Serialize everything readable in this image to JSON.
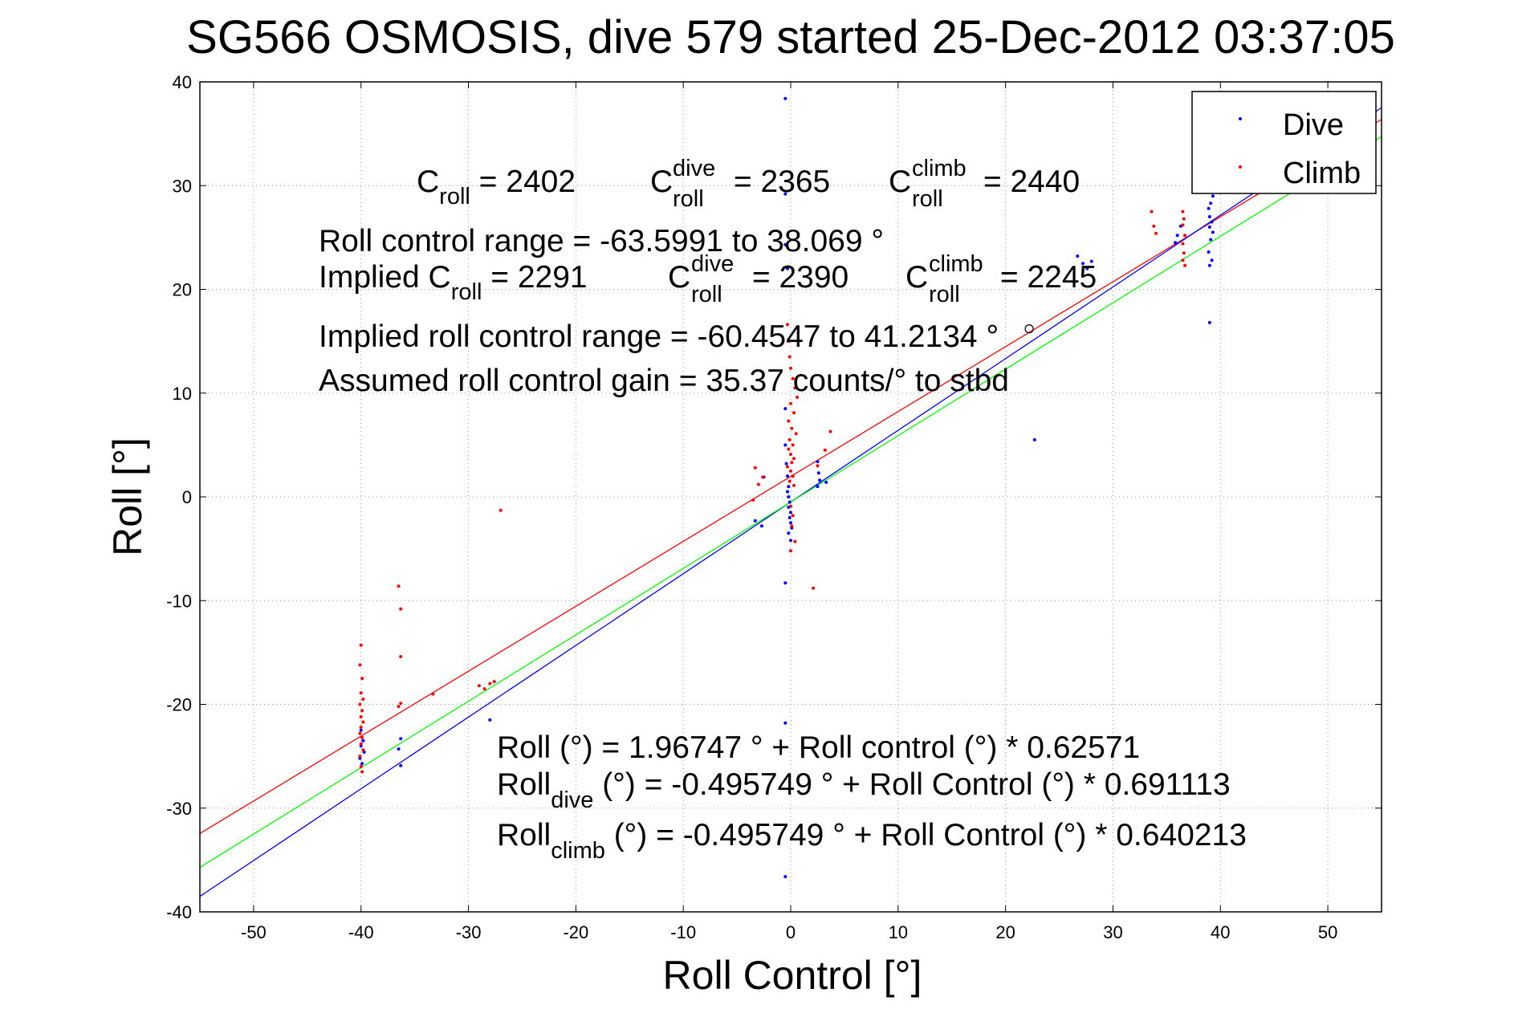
{
  "chart_data": {
    "type": "scatter",
    "title": "SG566 OSMOSIS, dive 579 started 25-Dec-2012 03:37:05",
    "xlabel": "Roll Control [°]",
    "ylabel": "Roll [°]",
    "xlim": [
      -55,
      55
    ],
    "ylim": [
      -40,
      40
    ],
    "xticks": [
      -50,
      -40,
      -30,
      -20,
      -10,
      0,
      10,
      20,
      30,
      40,
      50
    ],
    "yticks": [
      -40,
      -30,
      -20,
      -10,
      0,
      10,
      20,
      30,
      40
    ],
    "grid": true,
    "legend_position": "top-right",
    "legend": [
      {
        "label": "Dive",
        "color": "#0000ff",
        "marker": "dot"
      },
      {
        "label": "Climb",
        "color": "#ff0000",
        "marker": "dot"
      }
    ],
    "series": [
      {
        "name": "Dive",
        "color": "#0000ff",
        "points": [
          [
            -0.5,
            38.4
          ],
          [
            -0.5,
            29.2
          ],
          [
            -0.5,
            24.3
          ],
          [
            -0.3,
            22.0
          ],
          [
            -0.5,
            8.5
          ],
          [
            -0.5,
            5.0
          ],
          [
            -0.4,
            3.2
          ],
          [
            -0.3,
            2.0
          ],
          [
            -0.2,
            1.0
          ],
          [
            -0.3,
            0.5
          ],
          [
            -0.2,
            0.0
          ],
          [
            -0.1,
            -0.5
          ],
          [
            -0.2,
            -1.0
          ],
          [
            0.0,
            -1.5
          ],
          [
            -0.1,
            -2.0
          ],
          [
            0.0,
            -2.5
          ],
          [
            0.1,
            -3.0
          ],
          [
            -0.2,
            -3.5
          ],
          [
            0.0,
            -4.2
          ],
          [
            -0.5,
            -8.3
          ],
          [
            -0.5,
            -21.8
          ],
          [
            -0.5,
            -36.6
          ],
          [
            -3.3,
            -2.3
          ],
          [
            -2.7,
            -2.8
          ],
          [
            -2.5,
            1.9
          ],
          [
            2.5,
            3.4
          ],
          [
            2.6,
            2.3
          ],
          [
            2.7,
            1.6
          ],
          [
            3.3,
            1.4
          ],
          [
            2.5,
            1.0
          ],
          [
            22.7,
            5.5
          ],
          [
            26.7,
            23.2
          ],
          [
            27.2,
            22.5
          ],
          [
            27.6,
            22.0
          ],
          [
            28.0,
            22.7
          ],
          [
            36.0,
            25.2
          ],
          [
            36.3,
            26.1
          ],
          [
            35.8,
            24.5
          ],
          [
            38.9,
            27.8
          ],
          [
            39.0,
            27.0
          ],
          [
            39.2,
            26.5
          ],
          [
            39.0,
            26.0
          ],
          [
            39.3,
            25.5
          ],
          [
            39.1,
            24.8
          ],
          [
            38.9,
            23.6
          ],
          [
            39.2,
            22.8
          ],
          [
            39.0,
            22.3
          ],
          [
            39.3,
            29.0
          ],
          [
            39.1,
            28.3
          ],
          [
            39.0,
            16.8
          ],
          [
            -40.0,
            -22.5
          ],
          [
            -39.8,
            -23.5
          ],
          [
            -40.0,
            -24.0
          ],
          [
            -39.7,
            -24.6
          ],
          [
            -40.1,
            -25.2
          ],
          [
            -39.9,
            -25.7
          ],
          [
            -36.3,
            -23.3
          ],
          [
            -36.5,
            -24.3
          ],
          [
            -36.3,
            -25.9
          ],
          [
            -28.0,
            -21.5
          ]
        ]
      },
      {
        "name": "Climb",
        "color": "#ff0000",
        "points": [
          [
            -0.3,
            16.6
          ],
          [
            -0.2,
            15.0
          ],
          [
            -0.1,
            13.5
          ],
          [
            0.0,
            12.4
          ],
          [
            0.2,
            11.4
          ],
          [
            0.4,
            10.5
          ],
          [
            0.6,
            9.6
          ],
          [
            0.0,
            9.0
          ],
          [
            0.3,
            8.1
          ],
          [
            -0.2,
            7.3
          ],
          [
            0.1,
            6.6
          ],
          [
            0.5,
            6.1
          ],
          [
            -0.1,
            5.5
          ],
          [
            0.2,
            5.0
          ],
          [
            -0.2,
            4.6
          ],
          [
            0.0,
            4.1
          ],
          [
            0.3,
            3.7
          ],
          [
            0.1,
            3.3
          ],
          [
            -0.3,
            2.9
          ],
          [
            0.0,
            2.5
          ],
          [
            0.2,
            2.0
          ],
          [
            -0.1,
            1.5
          ],
          [
            0.3,
            1.1
          ],
          [
            0.0,
            -0.9
          ],
          [
            0.2,
            -1.8
          ],
          [
            0.1,
            -2.8
          ],
          [
            0.4,
            -4.3
          ],
          [
            0.0,
            -5.2
          ],
          [
            -3.3,
            2.8
          ],
          [
            -3.0,
            1.2
          ],
          [
            -2.6,
            1.9
          ],
          [
            -3.5,
            -0.3
          ],
          [
            3.2,
            4.5
          ],
          [
            3.7,
            6.3
          ],
          [
            2.5,
            3.0
          ],
          [
            2.1,
            -8.8
          ],
          [
            -27.0,
            -1.3
          ],
          [
            -29.0,
            -18.2
          ],
          [
            -28.5,
            -18.5
          ],
          [
            -28.0,
            -18.0
          ],
          [
            -27.6,
            -17.8
          ],
          [
            -33.3,
            -19.0
          ],
          [
            -36.5,
            -8.6
          ],
          [
            -36.3,
            -10.8
          ],
          [
            -36.3,
            -15.4
          ],
          [
            -36.5,
            -20.2
          ],
          [
            -36.3,
            -19.9
          ],
          [
            -40.0,
            -14.3
          ],
          [
            -40.1,
            -16.2
          ],
          [
            -39.9,
            -17.5
          ],
          [
            -40.0,
            -18.9
          ],
          [
            -39.8,
            -19.5
          ],
          [
            -40.1,
            -20.0
          ],
          [
            -39.9,
            -20.6
          ],
          [
            -40.0,
            -21.2
          ],
          [
            -39.8,
            -21.7
          ],
          [
            -40.0,
            -22.2
          ],
          [
            -40.1,
            -22.8
          ],
          [
            -39.9,
            -23.2
          ],
          [
            -40.0,
            -23.8
          ],
          [
            -39.8,
            -24.4
          ],
          [
            -40.1,
            -25.0
          ],
          [
            -40.0,
            -26.0
          ],
          [
            -39.9,
            -26.5
          ],
          [
            33.6,
            27.5
          ],
          [
            33.8,
            26.1
          ],
          [
            34.0,
            25.4
          ],
          [
            36.5,
            27.5
          ],
          [
            36.6,
            26.8
          ],
          [
            36.5,
            26.2
          ],
          [
            36.7,
            25.2
          ],
          [
            36.5,
            24.4
          ],
          [
            36.6,
            23.5
          ],
          [
            36.5,
            22.8
          ],
          [
            36.7,
            22.3
          ],
          [
            39.2,
            30.0
          ],
          [
            39.5,
            31.0
          ]
        ]
      }
    ],
    "fit_lines": [
      {
        "name": "all",
        "color": "#ff0000",
        "intercept": 1.96747,
        "slope": 0.62571
      },
      {
        "name": "dive",
        "color": "#0000ff",
        "intercept": -0.495749,
        "slope": 0.691113
      },
      {
        "name": "climb",
        "color": "#00ff00",
        "intercept": -0.495749,
        "slope": 0.640213
      }
    ],
    "markers": [
      {
        "label": "roll control range end",
        "x": 22.2,
        "y": 16.2,
        "symbol": "open-circle"
      }
    ],
    "annotations": {
      "c_roll": {
        "base": "C",
        "sub": "roll",
        "text": " = 2402"
      },
      "c_roll_dive": {
        "base": "C",
        "sup": "dive",
        "sub": "roll",
        "text": " = 2365"
      },
      "c_roll_climb": {
        "base": "C",
        "sup": "climb",
        "sub": "roll",
        "text": " = 2440"
      },
      "range": "Roll control range = -63.5991 to 38.069 °",
      "implied_c_roll": {
        "prefix": "Implied C",
        "sub": "roll",
        "text": " = 2291"
      },
      "implied_c_dive": {
        "base": "C",
        "sup": "dive",
        "sub": "roll",
        "text": " = 2390"
      },
      "implied_c_climb": {
        "base": "C",
        "sup": "climb",
        "sub": "roll",
        "text": " = 2245"
      },
      "implied_range": "Implied roll control range = -60.4547 to 41.2134 °",
      "gain": "Assumed roll control gain = 35.37 counts/° to stbd",
      "fit_all": "Roll (°) = 1.96747 ° + Roll control (°) * 0.62571",
      "fit_dive": {
        "base": "Roll",
        "sub": "dive",
        "text": " (°) = -0.495749 ° + Roll Control (°) * 0.691113"
      },
      "fit_climb": {
        "base": "Roll",
        "sub": "climb",
        "text": " (°) = -0.495749 ° + Roll Control (°) * 0.640213"
      }
    }
  }
}
